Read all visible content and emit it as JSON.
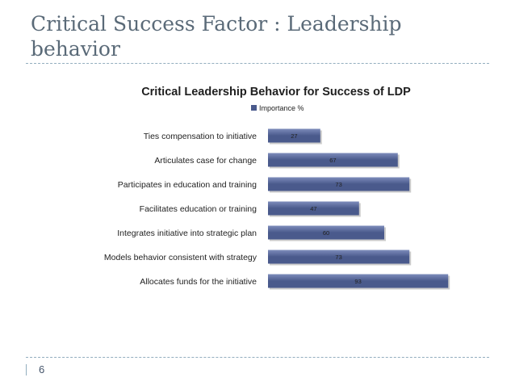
{
  "slide": {
    "title": "Critical Success Factor : Leadership behavior",
    "page_number": "6"
  },
  "chart_data": {
    "type": "bar",
    "orientation": "horizontal",
    "title": "Critical Leadership Behavior for Success of LDP",
    "categories": [
      "Ties compensation to initiative",
      "Articulates case for change",
      "Participates in education and training",
      "Facilitates education or training",
      "Integrates initiative into strategic plan",
      "Models behavior consistent with strategy",
      "Allocates funds for the initiative"
    ],
    "series": [
      {
        "name": "Importance %",
        "values": [
          27,
          67,
          73,
          47,
          60,
          73,
          93
        ]
      }
    ],
    "xlim": [
      0,
      100
    ],
    "grid": false,
    "legend_position": "top",
    "colors": {
      "bar": "#4a5a8c",
      "bar_light": "#7d8cbb",
      "shadow": "#a9a9a9"
    }
  }
}
